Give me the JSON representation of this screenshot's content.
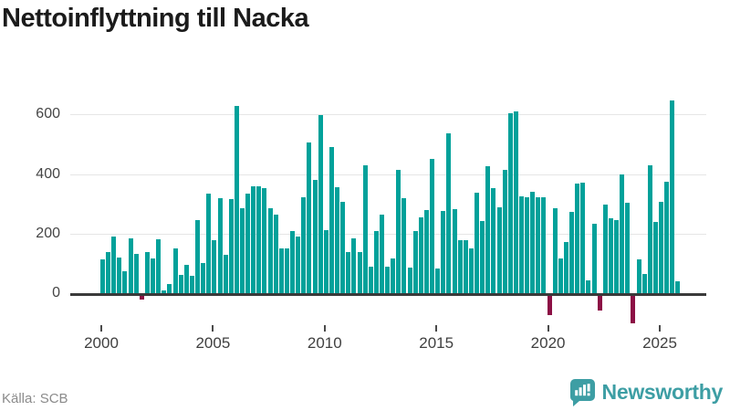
{
  "title": "Nettoinflyttning till Nacka",
  "source": "Källa: SCB",
  "brand": {
    "name": "Newsworthy"
  },
  "colors": {
    "bar_positive": "#00a19a",
    "bar_negative": "#8c1045",
    "brand_teal": "#3d9ea4",
    "title_text": "#1b1b1b",
    "axis_text": "#454545",
    "gridline": "#e6e6e6",
    "zero_line": "#3a3a3a",
    "source_text": "#8b8b8b"
  },
  "chart_data": {
    "type": "bar",
    "title": "Nettoinflyttning till Nacka",
    "frequency": "quarterly",
    "start_period": "2000-Q1",
    "end_period": "2025-Q4",
    "grid": "horizontal",
    "x_ticks": [
      2000,
      2005,
      2010,
      2015,
      2020,
      2025
    ],
    "y_ticks": [
      0,
      200,
      400,
      600
    ],
    "ylim": [
      -110,
      680
    ],
    "values": [
      113,
      138,
      191,
      120,
      73,
      185,
      132,
      -15,
      137,
      117,
      180,
      8,
      30,
      150,
      60,
      94,
      57,
      244,
      100,
      333,
      179,
      318,
      128,
      316,
      629,
      285,
      335,
      360,
      360,
      352,
      286,
      264,
      149,
      149,
      210,
      191,
      323,
      505,
      380,
      598,
      213,
      492,
      357,
      308,
      138,
      185,
      138,
      430,
      90,
      208,
      265,
      90,
      116,
      413,
      318,
      85,
      208,
      254,
      280,
      451,
      82,
      277,
      538,
      282,
      179,
      179,
      149,
      336,
      241,
      426,
      352,
      287,
      413,
      603,
      611,
      326,
      321,
      342,
      323,
      323,
      -65,
      285,
      116,
      172,
      272,
      367,
      372,
      44,
      234,
      -50,
      297,
      251,
      244,
      400,
      303,
      -95,
      112,
      64,
      429,
      238,
      306,
      373,
      646,
      41
    ]
  }
}
